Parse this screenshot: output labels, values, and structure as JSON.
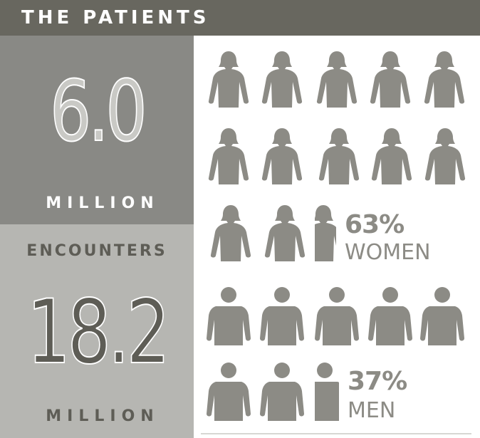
{
  "header": {
    "title": "THE PATIENTS"
  },
  "patients": {
    "value": "6.0",
    "unit": "MILLION"
  },
  "encounters": {
    "heading": "ENCOUNTERS",
    "value": "18.2",
    "unit": "MILLION"
  },
  "women": {
    "percent": "63%",
    "label": "WOMEN"
  },
  "men": {
    "percent": "37%",
    "label": "MEN"
  },
  "pictogram": {
    "women_share": 0.63,
    "men_share": 0.37,
    "women_icon": "woman-icon",
    "men_icon": "man-icon"
  },
  "colors": {
    "header_bg": "#68675f",
    "patients_bg": "#898985",
    "encounters_bg": "#b6b6b2",
    "figure": "#8c8b85",
    "dark_text": "#5e5d56"
  }
}
